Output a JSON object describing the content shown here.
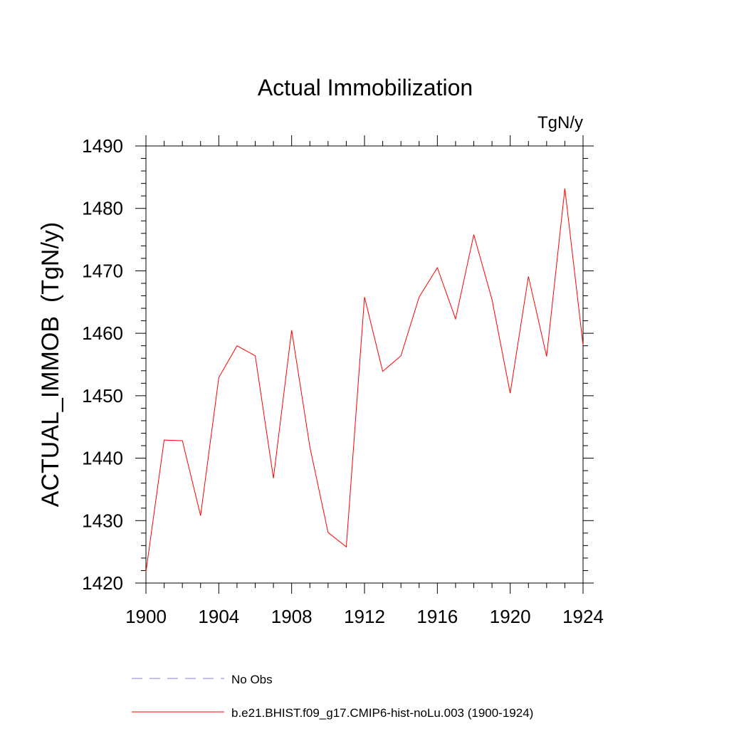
{
  "chart_data": {
    "type": "line",
    "title": "Actual Immobilization",
    "units_label": "TgN/y",
    "ylabel": "ACTUAL_IMMOB  (TgN/y)",
    "xlabel": "",
    "xlim": [
      1900,
      1924
    ],
    "ylim": [
      1420,
      1490
    ],
    "x_ticks": [
      1900,
      1904,
      1908,
      1912,
      1916,
      1920,
      1924
    ],
    "y_ticks": [
      1420,
      1430,
      1440,
      1450,
      1460,
      1470,
      1480,
      1490
    ],
    "x_minor_step": 1,
    "y_minor_step": 2,
    "grid": false,
    "series": [
      {
        "name": "b.e21.BHIST.f09_g17.CMIP6-hist-noLu.003 (1900-1924)",
        "color": "#ff0000",
        "dash": "solid",
        "x": [
          1900,
          1901,
          1902,
          1903,
          1904,
          1905,
          1906,
          1907,
          1908,
          1909,
          1910,
          1911,
          1912,
          1913,
          1914,
          1915,
          1916,
          1917,
          1918,
          1919,
          1920,
          1921,
          1922,
          1923,
          1924
        ],
        "values": [
          1421.8,
          1442.9,
          1442.8,
          1430.8,
          1452.9,
          1458.0,
          1456.4,
          1436.8,
          1460.5,
          1441.8,
          1428.1,
          1425.8,
          1465.8,
          1453.9,
          1456.4,
          1465.8,
          1470.5,
          1462.3,
          1475.8,
          1465.4,
          1450.4,
          1469.1,
          1456.3,
          1483.2,
          1458.1
        ]
      }
    ],
    "legend": {
      "placement": "bottom",
      "entries": [
        {
          "label": "No Obs",
          "color": "#8080c0",
          "dash": "dashed"
        },
        {
          "label": "b.e21.BHIST.f09_g17.CMIP6-hist-noLu.003 (1900-1924)",
          "color": "#ff0000",
          "dash": "solid"
        }
      ]
    }
  }
}
